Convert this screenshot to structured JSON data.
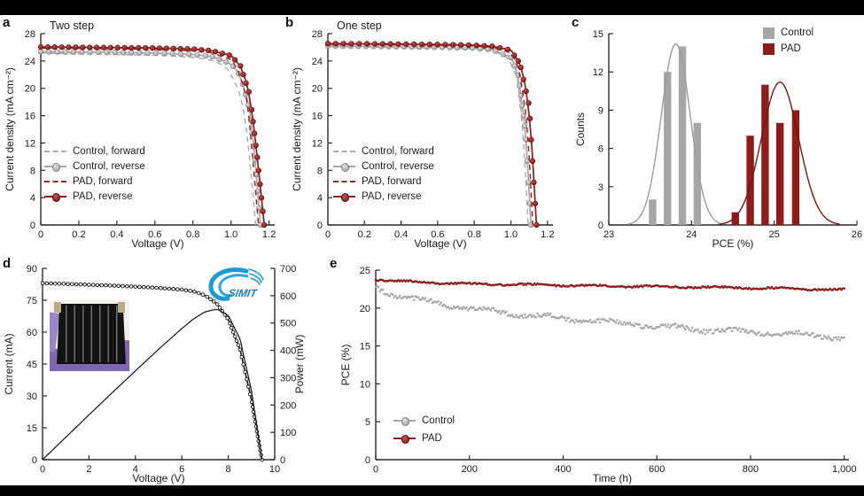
{
  "figure": {
    "panel_labels": {
      "a": "a",
      "b": "b",
      "c": "c",
      "d": "d",
      "e": "e"
    },
    "logo_text": "SIMIT",
    "colors": {
      "control_gray": "#a6a6a8",
      "pad_red": "#8e1c1c",
      "axis": "#2a2a2a",
      "logo_blue": "#1f9ad6",
      "frame_black": "#000000"
    }
  },
  "chart_data": [
    {
      "id": "a",
      "type": "jv",
      "title": "Two step",
      "xlabel": "Voltage (V)",
      "ylabel": "Current density (mA cm⁻²)",
      "xlim": [
        0,
        1.23
      ],
      "ylim": [
        0,
        28
      ],
      "xticks": [
        [
          0,
          "0"
        ],
        [
          0.2,
          "0.2"
        ],
        [
          0.4,
          "0.4"
        ],
        [
          0.6,
          "0.6"
        ],
        [
          0.8,
          "0.8"
        ],
        [
          1.0,
          "1.0"
        ],
        [
          1.2,
          "1.2"
        ]
      ],
      "yticks": [
        [
          0,
          "0"
        ],
        [
          4,
          "4"
        ],
        [
          8,
          "8"
        ],
        [
          12,
          "12"
        ],
        [
          16,
          "16"
        ],
        [
          20,
          "20"
        ],
        [
          24,
          "24"
        ],
        [
          28,
          "28"
        ]
      ],
      "spines": [
        "left",
        "bottom"
      ],
      "legend": [
        "Control, forward",
        "Control, reverse",
        "PAD, forward",
        "PAD, reverse"
      ],
      "series": [
        {
          "name": "Control, forward",
          "color": "#adadaf",
          "dash": true,
          "marker": false,
          "points": [
            [
              0,
              25.15
            ],
            [
              0.2,
              25.05
            ],
            [
              0.4,
              24.95
            ],
            [
              0.6,
              24.85
            ],
            [
              0.8,
              24.55
            ],
            [
              0.9,
              24.1
            ],
            [
              0.95,
              23.5
            ],
            [
              1.0,
              22.2
            ],
            [
              1.05,
              18.8
            ],
            [
              1.08,
              14.5
            ],
            [
              1.11,
              6.5
            ],
            [
              1.13,
              0
            ]
          ]
        },
        {
          "name": "Control, reverse",
          "color": "#a6a6a8",
          "dash": false,
          "marker": true,
          "bead": "gray",
          "points": [
            [
              0,
              25.35
            ],
            [
              0.2,
              25.3
            ],
            [
              0.4,
              25.25
            ],
            [
              0.6,
              25.15
            ],
            [
              0.8,
              24.95
            ],
            [
              0.9,
              24.65
            ],
            [
              1.0,
              23.6
            ],
            [
              1.05,
              21.8
            ],
            [
              1.1,
              16.5
            ],
            [
              1.13,
              8.5
            ],
            [
              1.155,
              0
            ]
          ]
        },
        {
          "name": "PAD, forward",
          "color": "#9b2b2b",
          "dash": true,
          "marker": false,
          "points": [
            [
              0,
              25.9
            ],
            [
              0.2,
              25.85
            ],
            [
              0.4,
              25.8
            ],
            [
              0.6,
              25.7
            ],
            [
              0.8,
              25.5
            ],
            [
              0.9,
              25.2
            ],
            [
              1.0,
              24.2
            ],
            [
              1.05,
              22.0
            ],
            [
              1.09,
              17.0
            ],
            [
              1.12,
              8.0
            ],
            [
              1.145,
              0
            ]
          ]
        },
        {
          "name": "PAD, reverse",
          "color": "#8e1c1c",
          "dash": false,
          "marker": true,
          "bead": "red",
          "points": [
            [
              0,
              26.05
            ],
            [
              0.2,
              26.0
            ],
            [
              0.4,
              25.95
            ],
            [
              0.6,
              25.9
            ],
            [
              0.8,
              25.75
            ],
            [
              0.9,
              25.5
            ],
            [
              1.0,
              24.8
            ],
            [
              1.05,
              23.3
            ],
            [
              1.1,
              19.0
            ],
            [
              1.14,
              9.5
            ],
            [
              1.175,
              0
            ]
          ]
        }
      ]
    },
    {
      "id": "b",
      "type": "jv",
      "title": "One step",
      "xlabel": "Voltage (V)",
      "ylabel": "Current density (mA cm⁻²)",
      "xlim": [
        0,
        1.23
      ],
      "ylim": [
        0,
        28
      ],
      "xticks": [
        [
          0,
          "0"
        ],
        [
          0.2,
          "0.2"
        ],
        [
          0.4,
          "0.4"
        ],
        [
          0.6,
          "0.6"
        ],
        [
          0.8,
          "0.8"
        ],
        [
          1.0,
          "1.0"
        ],
        [
          1.2,
          "1.2"
        ]
      ],
      "yticks": [
        [
          0,
          "0"
        ],
        [
          4,
          "4"
        ],
        [
          8,
          "8"
        ],
        [
          12,
          "12"
        ],
        [
          16,
          "16"
        ],
        [
          20,
          "20"
        ],
        [
          24,
          "24"
        ],
        [
          28,
          "28"
        ]
      ],
      "spines": [
        "left",
        "bottom"
      ],
      "legend": [
        "Control, forward",
        "Control, reverse",
        "PAD, forward",
        "PAD, reverse"
      ],
      "series": [
        {
          "name": "Control, forward",
          "color": "#adadaf",
          "dash": true,
          "marker": false,
          "points": [
            [
              0,
              26.1
            ],
            [
              0.3,
              26.0
            ],
            [
              0.6,
              25.9
            ],
            [
              0.8,
              25.75
            ],
            [
              0.9,
              25.45
            ],
            [
              0.95,
              25.0
            ],
            [
              1.0,
              23.9
            ],
            [
              1.04,
              20.5
            ],
            [
              1.07,
              12.0
            ],
            [
              1.095,
              0
            ]
          ]
        },
        {
          "name": "Control, reverse",
          "color": "#a6a6a8",
          "dash": false,
          "marker": true,
          "bead": "gray",
          "points": [
            [
              0,
              26.2
            ],
            [
              0.3,
              26.12
            ],
            [
              0.6,
              26.02
            ],
            [
              0.8,
              25.9
            ],
            [
              0.9,
              25.65
            ],
            [
              1.0,
              24.5
            ],
            [
              1.04,
              22.0
            ],
            [
              1.08,
              13.5
            ],
            [
              1.11,
              0
            ]
          ]
        },
        {
          "name": "PAD, forward",
          "color": "#9b2b2b",
          "dash": true,
          "marker": false,
          "points": [
            [
              0,
              26.45
            ],
            [
              0.3,
              26.4
            ],
            [
              0.6,
              26.32
            ],
            [
              0.8,
              26.2
            ],
            [
              0.9,
              26.0
            ],
            [
              1.0,
              25.2
            ],
            [
              1.05,
              22.5
            ],
            [
              1.09,
              14.0
            ],
            [
              1.12,
              0
            ]
          ]
        },
        {
          "name": "PAD, reverse",
          "color": "#8e1c1c",
          "dash": false,
          "marker": true,
          "bead": "red",
          "points": [
            [
              0,
              26.55
            ],
            [
              0.3,
              26.5
            ],
            [
              0.6,
              26.42
            ],
            [
              0.8,
              26.32
            ],
            [
              0.9,
              26.15
            ],
            [
              1.0,
              25.6
            ],
            [
              1.05,
              23.6
            ],
            [
              1.1,
              17.5
            ],
            [
              1.14,
              0
            ]
          ]
        }
      ]
    },
    {
      "id": "c",
      "type": "hist",
      "xlabel": "PCE (%)",
      "ylabel": "Counts",
      "xlim": [
        23,
        26
      ],
      "ylim": [
        0,
        15
      ],
      "xticks": [
        [
          23,
          "23"
        ],
        [
          24,
          "24"
        ],
        [
          25,
          "25"
        ],
        [
          26,
          "26"
        ]
      ],
      "yticks": [
        [
          0,
          "0"
        ],
        [
          3,
          "3"
        ],
        [
          6,
          "6"
        ],
        [
          9,
          "9"
        ],
        [
          12,
          "12"
        ],
        [
          15,
          "15"
        ]
      ],
      "spines": [
        "left",
        "bottom"
      ],
      "legend": [
        "Control",
        "PAD"
      ],
      "groups": [
        {
          "name": "Control",
          "bar_color": "#a6a6a8",
          "line_color": "#9c9c9e",
          "bar_width": 0.09,
          "bars": [
            [
              23.53,
              2
            ],
            [
              23.71,
              12
            ],
            [
              23.89,
              14
            ],
            [
              24.07,
              8
            ]
          ],
          "fit": {
            "mean": 23.81,
            "sd": 0.175,
            "amp": 14.2
          }
        },
        {
          "name": "PAD",
          "bar_color": "#8e1c1c",
          "line_color": "#7a1414",
          "bar_width": 0.09,
          "bars": [
            [
              24.53,
              1
            ],
            [
              24.71,
              7
            ],
            [
              24.89,
              11
            ],
            [
              25.07,
              8
            ],
            [
              25.26,
              9
            ]
          ],
          "fit": {
            "mean": 25.07,
            "sd": 0.225,
            "amp": 11.2
          }
        }
      ]
    },
    {
      "id": "d",
      "type": "dual",
      "xlabel": "Voltage (V)",
      "ylabel": "Current (mA)",
      "y2label": "Power (mW)",
      "xlim": [
        0,
        10
      ],
      "ylim": [
        0,
        90
      ],
      "y2lim": [
        0,
        700
      ],
      "xticks": [
        [
          0,
          "0"
        ],
        [
          2,
          "2"
        ],
        [
          4,
          "4"
        ],
        [
          6,
          "6"
        ],
        [
          8,
          "8"
        ],
        [
          10,
          "10"
        ]
      ],
      "yticks": [
        [
          0,
          "0"
        ],
        [
          15,
          "15"
        ],
        [
          30,
          "30"
        ],
        [
          45,
          "45"
        ],
        [
          60,
          "60"
        ],
        [
          75,
          "75"
        ],
        [
          90,
          "90"
        ]
      ],
      "y2ticks": [
        [
          0,
          "0"
        ],
        [
          100,
          "100"
        ],
        [
          200,
          "200"
        ],
        [
          300,
          "300"
        ],
        [
          400,
          "400"
        ],
        [
          500,
          "500"
        ],
        [
          600,
          "600"
        ],
        [
          700,
          "700"
        ]
      ],
      "spines": [
        "left",
        "bottom",
        "right"
      ],
      "series": [
        {
          "name": "Current",
          "axis": "left",
          "color": "#1a1a1a",
          "marker": "open",
          "points": [
            [
              0,
              83
            ],
            [
              1,
              82.7
            ],
            [
              2,
              82.3
            ],
            [
              3,
              81.9
            ],
            [
              4,
              81.4
            ],
            [
              5,
              80.8
            ],
            [
              6,
              80.0
            ],
            [
              6.5,
              79.2
            ],
            [
              7,
              77.3
            ],
            [
              7.5,
              73.5
            ],
            [
              8,
              66.0
            ],
            [
              8.5,
              52.0
            ],
            [
              9,
              28.0
            ],
            [
              9.3,
              9.0
            ],
            [
              9.45,
              0
            ]
          ]
        },
        {
          "name": "Power",
          "axis": "right",
          "color": "#1a1a1a",
          "marker": "none",
          "points": [
            [
              0,
              0
            ],
            [
              1,
              82
            ],
            [
              2,
              164
            ],
            [
              3,
              245
            ],
            [
              4,
              325
            ],
            [
              5,
              404
            ],
            [
              6,
              480
            ],
            [
              6.5,
              515
            ],
            [
              7,
              541
            ],
            [
              7.5,
              551
            ],
            [
              8,
              528
            ],
            [
              8.5,
              442
            ],
            [
              9,
              252
            ],
            [
              9.3,
              84
            ],
            [
              9.45,
              0
            ]
          ]
        }
      ]
    },
    {
      "id": "e",
      "type": "decay",
      "xlabel": "Time (h)",
      "ylabel": "PCE (%)",
      "xlim": [
        0,
        1010
      ],
      "ylim": [
        0,
        25
      ],
      "xticks": [
        [
          0,
          "0"
        ],
        [
          200,
          "200"
        ],
        [
          400,
          "400"
        ],
        [
          600,
          "600"
        ],
        [
          800,
          "800"
        ],
        [
          1000,
          "1,000"
        ]
      ],
      "yticks": [
        [
          0,
          "0"
        ],
        [
          5,
          "5"
        ],
        [
          10,
          "10"
        ],
        [
          15,
          "15"
        ],
        [
          20,
          "20"
        ],
        [
          25,
          "25"
        ]
      ],
      "spines": [
        "left",
        "bottom"
      ],
      "legend": [
        "Control",
        "PAD"
      ],
      "series": [
        {
          "name": "Control",
          "color": "#a8a8aa",
          "noise": 0.26,
          "seed": 3,
          "points": [
            [
              0,
              22.7
            ],
            [
              30,
              21.9
            ],
            [
              60,
              21.4
            ],
            [
              100,
              21.0
            ],
            [
              150,
              20.5
            ],
            [
              200,
              19.9
            ],
            [
              250,
              19.6
            ],
            [
              300,
              19.2
            ],
            [
              350,
              18.9
            ],
            [
              400,
              18.6
            ],
            [
              450,
              18.4
            ],
            [
              500,
              18.1
            ],
            [
              550,
              17.9
            ],
            [
              600,
              17.6
            ],
            [
              650,
              17.4
            ],
            [
              700,
              17.1
            ],
            [
              750,
              17.0
            ],
            [
              800,
              16.8
            ],
            [
              850,
              16.7
            ],
            [
              900,
              16.5
            ],
            [
              950,
              16.3
            ],
            [
              1000,
              16.1
            ]
          ]
        },
        {
          "name": "PAD",
          "color": "#8e1c1c",
          "noise": 0.1,
          "seed": 11,
          "points": [
            [
              0,
              23.8
            ],
            [
              50,
              23.55
            ],
            [
              100,
              23.4
            ],
            [
              200,
              23.2
            ],
            [
              300,
              23.1
            ],
            [
              400,
              23.0
            ],
            [
              500,
              22.9
            ],
            [
              600,
              22.85
            ],
            [
              700,
              22.75
            ],
            [
              800,
              22.65
            ],
            [
              900,
              22.55
            ],
            [
              1000,
              22.4
            ]
          ]
        }
      ]
    }
  ]
}
